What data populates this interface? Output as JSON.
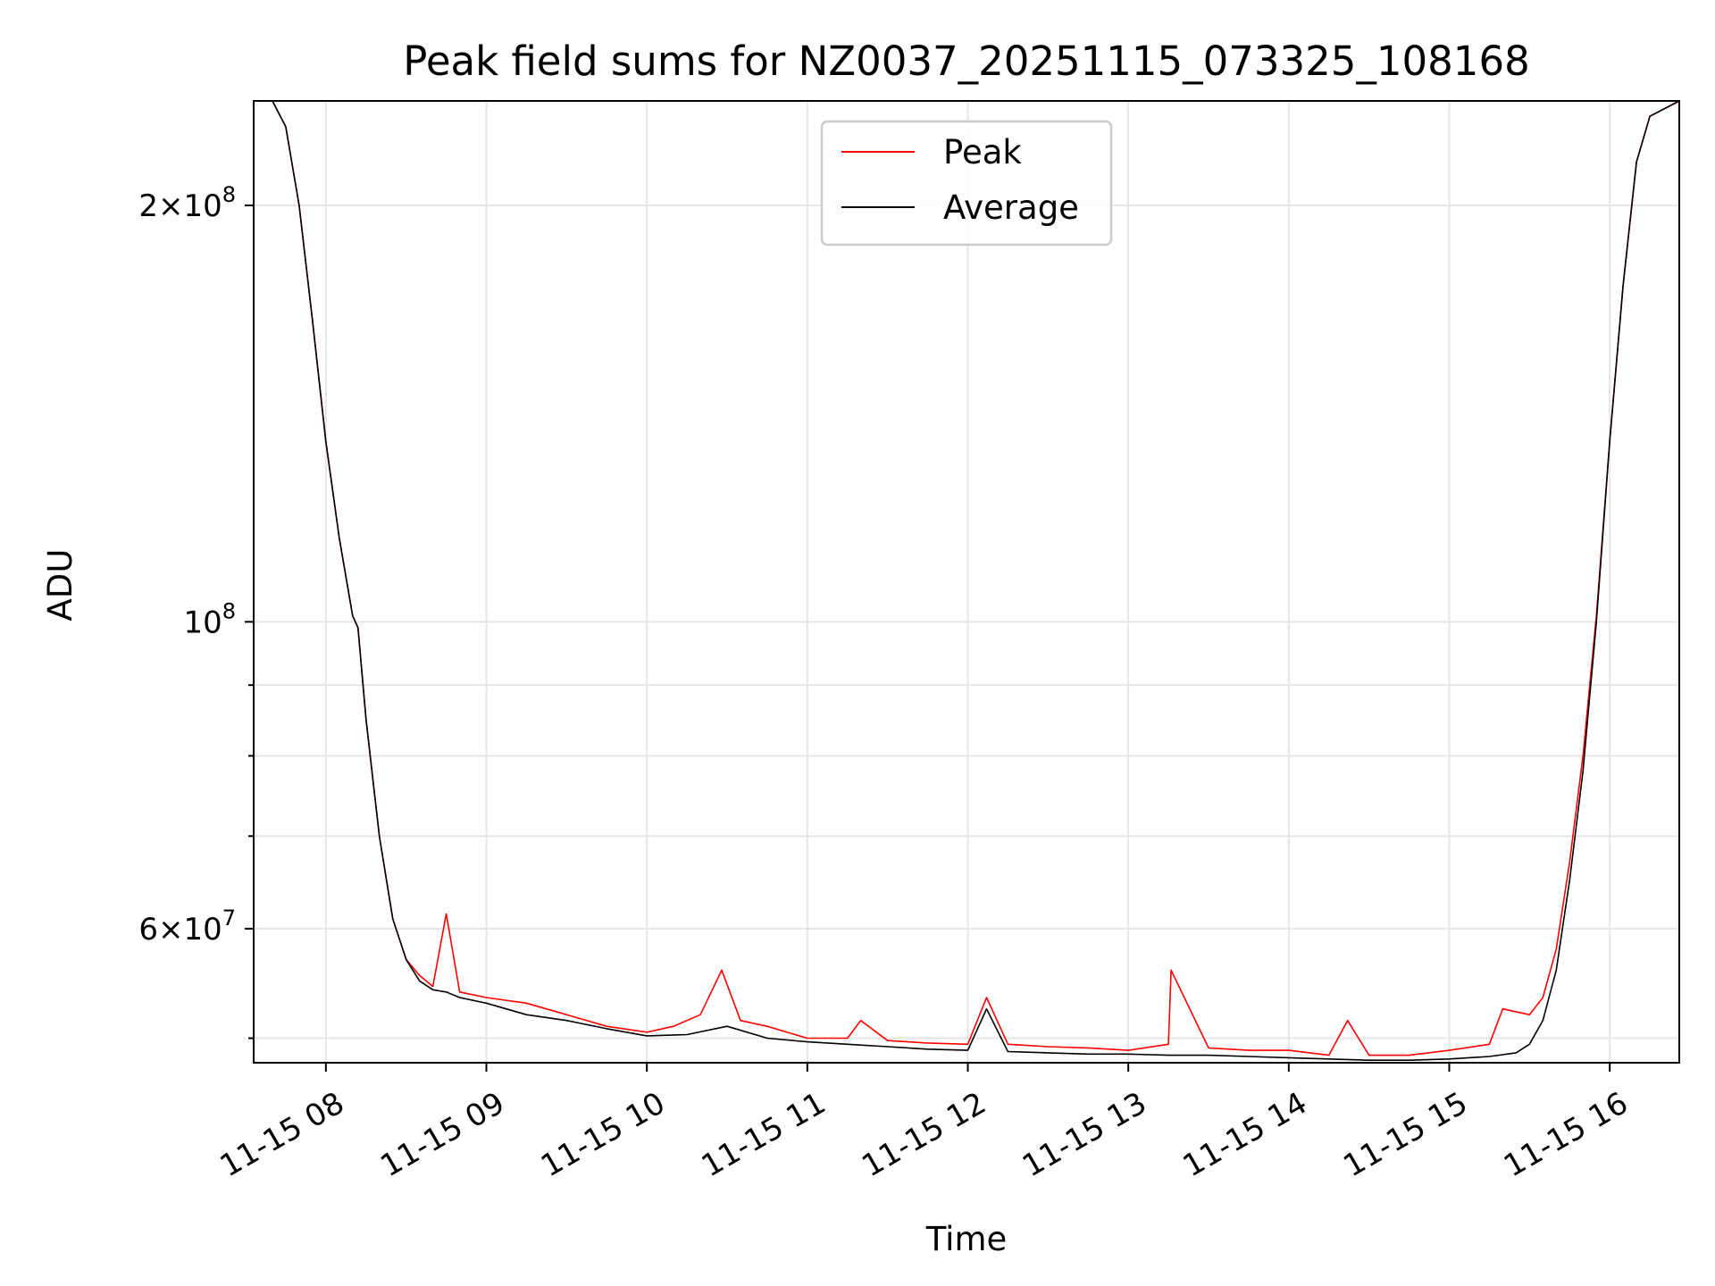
{
  "chart_data": {
    "type": "line",
    "title": "Peak field sums for NZ0037_20251115_073325_108168",
    "xlabel": "Time",
    "ylabel": "ADU",
    "x_tick_labels": [
      "11-15 08",
      "11-15 09",
      "11-15 10",
      "11-15 11",
      "11-15 12",
      "11-15 13",
      "11-15 14",
      "11-15 15",
      "11-15 16"
    ],
    "x_tick_values": [
      "2025-11-15 08:00",
      "2025-11-15 09:00",
      "2025-11-15 10:00",
      "2025-11-15 11:00",
      "2025-11-15 12:00",
      "2025-11-15 13:00",
      "2025-11-15 14:00",
      "2025-11-15 15:00",
      "2025-11-15 16:00"
    ],
    "xlim": [
      "2025-11-15 07:33",
      "2025-11-15 16:26"
    ],
    "y_scale": "log",
    "ylim": [
      48000000,
      238000000
    ],
    "y_major_ticks": [
      {
        "value": 200000000,
        "mantissa": "2",
        "exponent": "8"
      },
      {
        "value": 100000000,
        "mantissa": "",
        "exponent": "8"
      },
      {
        "value": 60000000,
        "mantissa": "6",
        "exponent": "7"
      }
    ],
    "y_minor_ticks": [
      50000000,
      70000000,
      80000000,
      90000000
    ],
    "grid": true,
    "legend_position": "top-center",
    "series": [
      {
        "name": "Peak",
        "color": "#ff0000",
        "x": [
          "07:33",
          "07:40",
          "07:45",
          "07:50",
          "07:55",
          "08:00",
          "08:05",
          "08:10",
          "08:12",
          "08:15",
          "08:20",
          "08:25",
          "08:30",
          "08:35",
          "08:40",
          "08:45",
          "08:50",
          "09:00",
          "09:15",
          "09:30",
          "09:45",
          "10:00",
          "10:10",
          "10:20",
          "10:28",
          "10:35",
          "10:45",
          "11:00",
          "11:15",
          "11:20",
          "11:30",
          "11:45",
          "12:00",
          "12:07",
          "12:15",
          "12:30",
          "12:45",
          "13:00",
          "13:15",
          "13:16",
          "13:30",
          "13:45",
          "14:00",
          "14:15",
          "14:22",
          "14:30",
          "14:45",
          "15:00",
          "15:15",
          "15:20",
          "15:30",
          "15:35",
          "15:40",
          "15:45",
          "15:50",
          "15:55",
          "16:00",
          "16:05",
          "16:10",
          "16:15",
          "16:26"
        ],
        "y": [
          238000000,
          238000000,
          228000000,
          200000000,
          165000000,
          135000000,
          115000000,
          101000000,
          99000000,
          85000000,
          70000000,
          61000000,
          57000000,
          55500000,
          54500000,
          61500000,
          54000000,
          53500000,
          53000000,
          52000000,
          51000000,
          50500000,
          51000000,
          52000000,
          56000000,
          51500000,
          51000000,
          50000000,
          50000000,
          51500000,
          49800000,
          49600000,
          49500000,
          53500000,
          49500000,
          49300000,
          49200000,
          49000000,
          49500000,
          56000000,
          49200000,
          49000000,
          49000000,
          48600000,
          51500000,
          48600000,
          48600000,
          49000000,
          49500000,
          52500000,
          52000000,
          53500000,
          58000000,
          67000000,
          80000000,
          101000000,
          135000000,
          175000000,
          215000000,
          232000000,
          238000000
        ]
      },
      {
        "name": "Average",
        "color": "#000000",
        "x": [
          "07:33",
          "07:40",
          "07:45",
          "07:50",
          "07:55",
          "08:00",
          "08:05",
          "08:10",
          "08:12",
          "08:15",
          "08:20",
          "08:25",
          "08:30",
          "08:35",
          "08:40",
          "08:45",
          "08:50",
          "09:00",
          "09:15",
          "09:30",
          "09:45",
          "10:00",
          "10:15",
          "10:30",
          "10:45",
          "11:00",
          "11:15",
          "11:30",
          "11:45",
          "12:00",
          "12:07",
          "12:15",
          "12:30",
          "12:45",
          "13:00",
          "13:15",
          "13:30",
          "13:45",
          "14:00",
          "14:15",
          "14:30",
          "14:45",
          "15:00",
          "15:15",
          "15:25",
          "15:30",
          "15:35",
          "15:40",
          "15:45",
          "15:50",
          "15:55",
          "16:00",
          "16:05",
          "16:10",
          "16:15",
          "16:26"
        ],
        "y": [
          238000000,
          238000000,
          228000000,
          200000000,
          165000000,
          135000000,
          115000000,
          101000000,
          99000000,
          85000000,
          70000000,
          61000000,
          57000000,
          55000000,
          54200000,
          54000000,
          53500000,
          53000000,
          52000000,
          51500000,
          50800000,
          50200000,
          50300000,
          51000000,
          50000000,
          49700000,
          49500000,
          49300000,
          49100000,
          49000000,
          52500000,
          48900000,
          48800000,
          48700000,
          48700000,
          48600000,
          48600000,
          48500000,
          48400000,
          48300000,
          48200000,
          48200000,
          48300000,
          48500000,
          48800000,
          49500000,
          51500000,
          56000000,
          65000000,
          78000000,
          100000000,
          135000000,
          175000000,
          215000000,
          232000000,
          238000000
        ]
      }
    ]
  }
}
